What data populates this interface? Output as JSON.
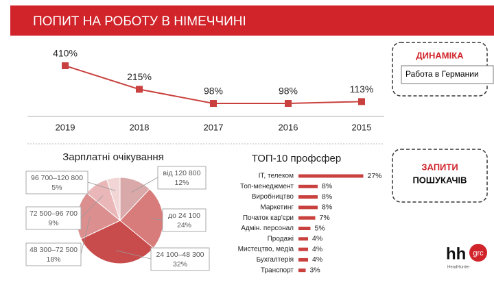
{
  "header": {
    "title": "ПОПИТ НА РОБОТУ В НІМЕЧЧИНІ"
  },
  "chart_data": [
    {
      "type": "line",
      "categories": [
        "2019",
        "2018",
        "2017",
        "2016",
        "2015"
      ],
      "values": [
        410,
        215,
        98,
        98,
        113
      ],
      "value_labels": [
        "410%",
        "215%",
        "98%",
        "98%",
        "113%"
      ],
      "color": "#c9413e"
    },
    {
      "type": "pie",
      "title": "Зарплатні очікування",
      "categories": [
        "від 120 800",
        "до 24 100",
        "24 100–48 300",
        "48 300–72 500",
        "72 500–96 700",
        "96 700–120 800"
      ],
      "values": [
        12,
        24,
        32,
        18,
        9,
        5
      ],
      "value_labels": [
        "12%",
        "24%",
        "32%",
        "18%",
        "9%",
        "5%"
      ],
      "colors": [
        "#d9a9a9",
        "#d77b7b",
        "#c94c4c",
        "#dc8f8f",
        "#e9b7b7",
        "#f2d6d6"
      ]
    },
    {
      "type": "hbar",
      "title": "ТОП-10 профсфер",
      "categories": [
        "IT, телеком",
        "Топ-менеджмент",
        "Виробництво",
        "Маркетинг",
        "Початок кар'єри",
        "Адмін. персонал",
        "Продажі",
        "Мистецтво, медіа",
        "Бухгалтерія",
        "Транспорт"
      ],
      "values": [
        27,
        8,
        8,
        8,
        7,
        5,
        4,
        4,
        4,
        3
      ],
      "value_labels": [
        "27%",
        "8%",
        "8%",
        "8%",
        "7%",
        "5%",
        "4%",
        "4%",
        "4%",
        "3%"
      ],
      "color": "#c9413e"
    }
  ],
  "boxes": [
    {
      "line1": "ДИНАМІКА"
    },
    {
      "line1": "ЗАПИТИ",
      "line2": "ПОШУКАЧІВ"
    }
  ],
  "tooltip": "Работа в Германии",
  "logo": {
    "main": "hh",
    "badge": "grc",
    "caption": "HeadHunter"
  }
}
